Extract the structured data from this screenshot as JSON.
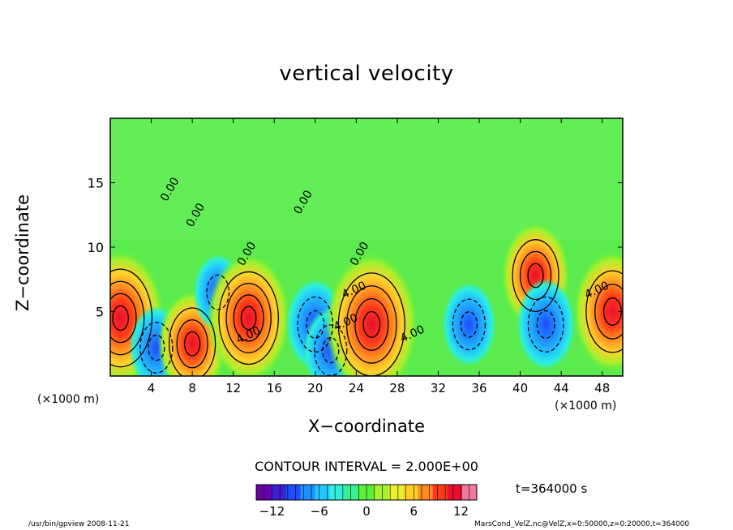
{
  "chart_data": {
    "type": "heatmap",
    "title": "vertical velocity",
    "xlabel": "X−coordinate",
    "ylabel": "Z−coordinate",
    "x_unit_left": "(×1000 m)",
    "x_unit_right": "(×1000 m)",
    "x_ticks": [
      "4",
      "8",
      "12",
      "16",
      "20",
      "24",
      "28",
      "32",
      "36",
      "40",
      "44",
      "48"
    ],
    "y_ticks": [
      "5",
      "10",
      "15"
    ],
    "xlim": [
      0,
      50
    ],
    "ylim": [
      0,
      20
    ],
    "colorbar": {
      "ticks": [
        "−12",
        "−6",
        "0",
        "6",
        "12"
      ],
      "range": [
        -14,
        14
      ],
      "colors": [
        "#6a00a8",
        "#3b1fd1",
        "#1f4cff",
        "#1f8fff",
        "#22c8ff",
        "#2ef0d8",
        "#39f08c",
        "#5cf03a",
        "#a6f02e",
        "#e8f02e",
        "#ffcf2a",
        "#ff8a1f",
        "#ff3a1a",
        "#e8102e",
        "#f07a9e"
      ]
    },
    "contour_interval": "CONTOUR INTERVAL = 2.000E+00",
    "contour_labels": [
      "0.00",
      "0.00",
      "0.00",
      "0.00",
      "0.00",
      "4.00",
      "4.00",
      "4.00",
      "4.00",
      "4.00"
    ],
    "cells": [
      {
        "x": 1.0,
        "z": 4.5,
        "w": 12
      },
      {
        "x": 4.5,
        "z": 2.2,
        "w": -5
      },
      {
        "x": 8.0,
        "z": 2.5,
        "w": 8
      },
      {
        "x": 10.5,
        "z": 6.5,
        "w": -4
      },
      {
        "x": 13.5,
        "z": 4.5,
        "w": 11
      },
      {
        "x": 20.0,
        "z": 4.0,
        "w": -6
      },
      {
        "x": 21.5,
        "z": 2.0,
        "w": -5
      },
      {
        "x": 25.5,
        "z": 4.0,
        "w": 13
      },
      {
        "x": 35.0,
        "z": 4.0,
        "w": -5
      },
      {
        "x": 41.5,
        "z": 7.8,
        "w": 8
      },
      {
        "x": 42.5,
        "z": 4.0,
        "w": -6
      },
      {
        "x": 49.0,
        "z": 5.0,
        "w": 10
      }
    ],
    "time": "t=364000 s"
  },
  "footer": {
    "left": "/usr/bin/gpview   2008-11-21",
    "right": "MarsCond_VelZ.nc@VelZ,x=0:50000,z=0:20000,t=364000"
  }
}
